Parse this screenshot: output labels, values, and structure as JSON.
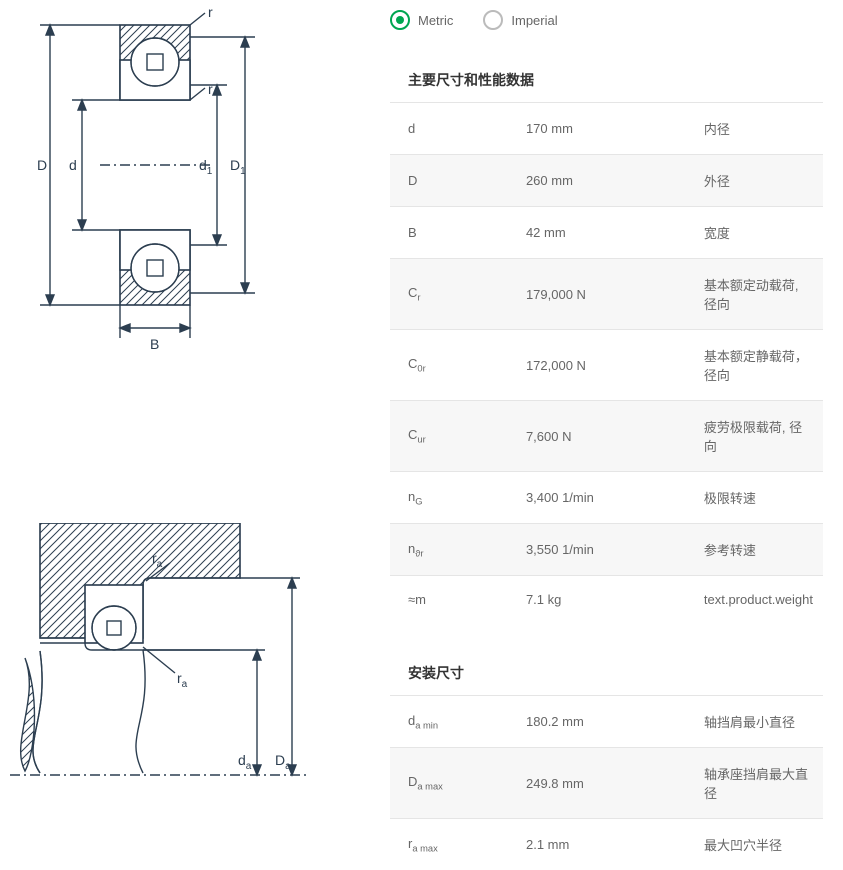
{
  "units": {
    "metric_label": "Metric",
    "imperial_label": "Imperial",
    "selected": "metric"
  },
  "section1": {
    "title": "主要尺寸和性能数据",
    "rows": [
      {
        "sym": "d",
        "sub": "",
        "val": "170 mm",
        "desc": "内径"
      },
      {
        "sym": "D",
        "sub": "",
        "val": "260 mm",
        "desc": "外径"
      },
      {
        "sym": "B",
        "sub": "",
        "val": "42 mm",
        "desc": "宽度"
      },
      {
        "sym": "C",
        "sub": "r",
        "val": "179,000 N",
        "desc": "基本额定动载荷, 径向"
      },
      {
        "sym": "C",
        "sub": "0r",
        "val": "172,000 N",
        "desc": "基本额定静载荷，径向"
      },
      {
        "sym": "C",
        "sub": "ur",
        "val": "7,600 N",
        "desc": "疲劳极限载荷, 径向"
      },
      {
        "sym": "n",
        "sub": "G",
        "val": "3,400 1/min",
        "desc": "极限转速"
      },
      {
        "sym": "n",
        "sub": "ϑr",
        "val": "3,550 1/min",
        "desc": "参考转速"
      },
      {
        "sym": "≈m",
        "sub": "",
        "val": "7.1 kg",
        "desc": "text.product.weight"
      }
    ]
  },
  "section2": {
    "title": "安装尺寸",
    "rows": [
      {
        "sym": "d",
        "sub": "a min",
        "val": "180.2 mm",
        "desc": "轴挡肩最小直径"
      },
      {
        "sym": "D",
        "sub": "a max",
        "val": "249.8 mm",
        "desc": "轴承座挡肩最大直径"
      },
      {
        "sym": "r",
        "sub": "a max",
        "val": "2.1 mm",
        "desc": "最大凹穴半径"
      }
    ]
  },
  "diagram1_labels": {
    "D": "D",
    "d": "d",
    "d1": "d",
    "D1": "D",
    "B": "B",
    "r1": "r",
    "r2": "r"
  },
  "diagram2_labels": {
    "ra1": "r",
    "ra2": "r",
    "da": "d",
    "Da": "D"
  },
  "colors": {
    "accent": "#00a650",
    "stroke": "#2c3e50",
    "row_alt": "#f7f7f7",
    "border": "#e5e5e5",
    "text_muted": "#666"
  }
}
